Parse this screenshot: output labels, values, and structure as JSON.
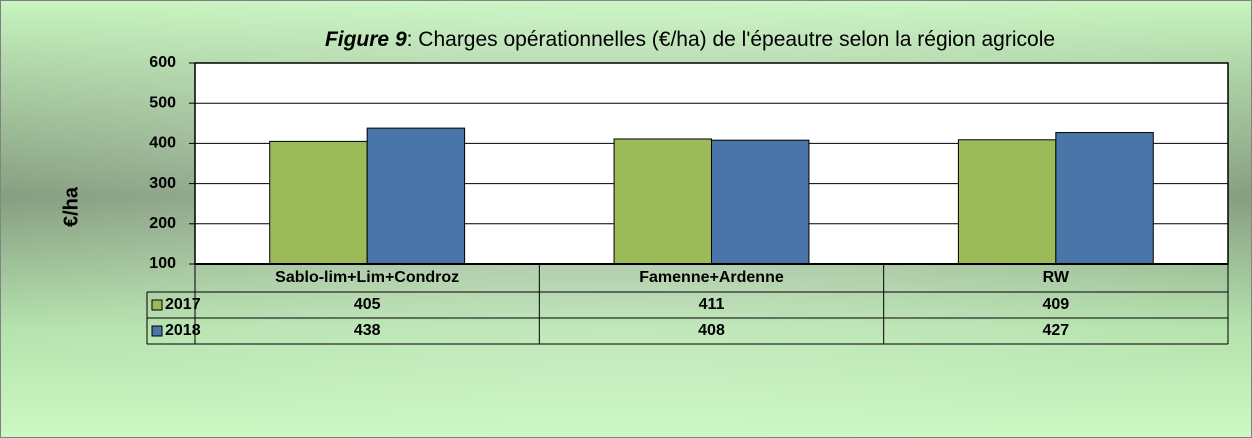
{
  "chart_data": {
    "type": "bar",
    "title": [
      "Figure 9",
      ": Charges opérationnelles (€/ha) de l'épeautre selon la région agricole"
    ],
    "y_label": "€/ha",
    "categories": [
      "Sablo-lim+Lim+Condroz",
      "Famenne+Ardenne",
      "RW"
    ],
    "series": [
      {
        "name": "2017",
        "color": "#9bbb59",
        "values": [
          405,
          411,
          409
        ]
      },
      {
        "name": "2018",
        "color": "#4a75a9",
        "values": [
          438,
          408,
          427
        ]
      }
    ],
    "ylim": [
      100,
      600
    ],
    "yticks": [
      100,
      200,
      300,
      400,
      500,
      600
    ],
    "grid": true
  }
}
